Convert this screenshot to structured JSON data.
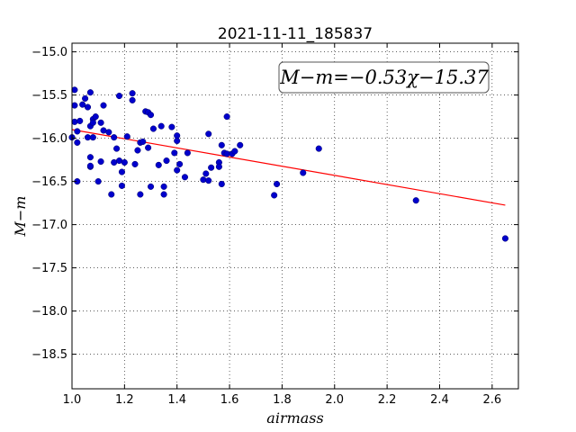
{
  "chart_data": {
    "type": "scatter",
    "title": "2021-11-11_185837",
    "xlabel": "airmass",
    "ylabel": "M−m",
    "xlim": [
      1.0,
      2.7
    ],
    "ylim": [
      -18.9,
      -14.9
    ],
    "xticks": [
      1.0,
      1.2,
      1.4,
      1.6,
      1.8,
      2.0,
      2.2,
      2.4,
      2.6
    ],
    "yticks": [
      -15.0,
      -15.5,
      -16.0,
      -16.5,
      -17.0,
      -17.5,
      -18.0,
      -18.5
    ],
    "xtick_labels": [
      "1.0",
      "1.2",
      "1.4",
      "1.6",
      "1.8",
      "2.0",
      "2.2",
      "2.4",
      "2.6"
    ],
    "ytick_labels": [
      "−15.0",
      "−15.5",
      "−16.0",
      "−16.5",
      "−17.0",
      "−17.5",
      "−18.0",
      "−18.5"
    ],
    "grid": true,
    "annotation": "M−m=−0.53χ−15.37",
    "fit": {
      "slope": -0.53,
      "intercept": -15.37,
      "x_range": [
        1.0,
        2.65
      ],
      "color": "#ff0000"
    },
    "point_color": "#0000cc",
    "points": [
      [
        1.0,
        -15.99
      ],
      [
        1.01,
        -15.44
      ],
      [
        1.01,
        -15.62
      ],
      [
        1.01,
        -15.81
      ],
      [
        1.02,
        -15.92
      ],
      [
        1.02,
        -16.05
      ],
      [
        1.02,
        -16.5
      ],
      [
        1.03,
        -15.8
      ],
      [
        1.04,
        -15.61
      ],
      [
        1.05,
        -15.54
      ],
      [
        1.06,
        -15.99
      ],
      [
        1.06,
        -15.64
      ],
      [
        1.07,
        -15.47
      ],
      [
        1.07,
        -15.86
      ],
      [
        1.07,
        -16.22
      ],
      [
        1.07,
        -16.33
      ],
      [
        1.07,
        -16.32
      ],
      [
        1.08,
        -15.78
      ],
      [
        1.08,
        -15.99
      ],
      [
        1.08,
        -15.82
      ],
      [
        1.09,
        -15.75
      ],
      [
        1.1,
        -16.5
      ],
      [
        1.11,
        -15.82
      ],
      [
        1.11,
        -16.27
      ],
      [
        1.12,
        -15.91
      ],
      [
        1.12,
        -15.62
      ],
      [
        1.14,
        -15.93
      ],
      [
        1.15,
        -16.65
      ],
      [
        1.16,
        -15.99
      ],
      [
        1.16,
        -16.28
      ],
      [
        1.17,
        -16.12
      ],
      [
        1.18,
        -16.26
      ],
      [
        1.18,
        -15.51
      ],
      [
        1.19,
        -16.39
      ],
      [
        1.19,
        -16.55
      ],
      [
        1.2,
        -16.28
      ],
      [
        1.21,
        -15.98
      ],
      [
        1.23,
        -15.56
      ],
      [
        1.23,
        -15.48
      ],
      [
        1.24,
        -16.3
      ],
      [
        1.25,
        -16.14
      ],
      [
        1.26,
        -16.05
      ],
      [
        1.26,
        -16.65
      ],
      [
        1.27,
        -16.04
      ],
      [
        1.28,
        -15.69
      ],
      [
        1.29,
        -15.7
      ],
      [
        1.29,
        -16.11
      ],
      [
        1.3,
        -16.56
      ],
      [
        1.3,
        -15.73
      ],
      [
        1.31,
        -15.89
      ],
      [
        1.33,
        -16.31
      ],
      [
        1.34,
        -15.86
      ],
      [
        1.35,
        -16.65
      ],
      [
        1.35,
        -16.56
      ],
      [
        1.36,
        -16.26
      ],
      [
        1.38,
        -15.87
      ],
      [
        1.39,
        -16.17
      ],
      [
        1.4,
        -16.37
      ],
      [
        1.4,
        -15.97
      ],
      [
        1.4,
        -16.03
      ],
      [
        1.41,
        -16.3
      ],
      [
        1.43,
        -16.45
      ],
      [
        1.44,
        -16.17
      ],
      [
        1.5,
        -16.48
      ],
      [
        1.51,
        -16.41
      ],
      [
        1.52,
        -16.49
      ],
      [
        1.52,
        -15.95
      ],
      [
        1.53,
        -16.34
      ],
      [
        1.56,
        -16.28
      ],
      [
        1.56,
        -16.33
      ],
      [
        1.57,
        -16.08
      ],
      [
        1.57,
        -16.53
      ],
      [
        1.58,
        -16.17
      ],
      [
        1.59,
        -16.18
      ],
      [
        1.59,
        -15.75
      ],
      [
        1.61,
        -16.18
      ],
      [
        1.62,
        -16.15
      ],
      [
        1.64,
        -16.08
      ],
      [
        1.77,
        -16.66
      ],
      [
        1.78,
        -16.53
      ],
      [
        1.88,
        -16.4
      ],
      [
        1.94,
        -16.12
      ],
      [
        2.31,
        -16.72
      ],
      [
        2.65,
        -17.16
      ]
    ]
  }
}
